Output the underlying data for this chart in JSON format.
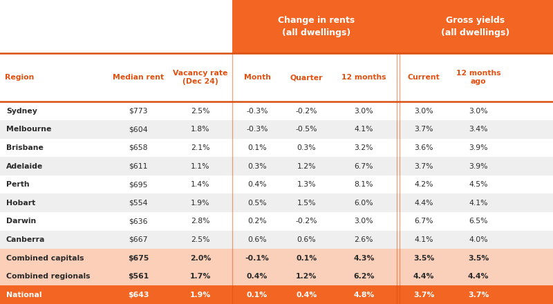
{
  "header_group1": "Change in rents\n(all dwellings)",
  "header_group2": "Gross yields\n(all dwellings)",
  "col_headers": [
    "Region",
    "Median rent",
    "Vacancy rate\n(Dec 24)",
    "Month",
    "Quarter",
    "12 months",
    "Current",
    "12 months\nago"
  ],
  "rows": [
    [
      "Sydney",
      "$773",
      "2.5%",
      "-0.3%",
      "-0.2%",
      "3.0%",
      "3.0%",
      "3.0%"
    ],
    [
      "Melbourne",
      "$604",
      "1.8%",
      "-0.3%",
      "-0.5%",
      "4.1%",
      "3.7%",
      "3.4%"
    ],
    [
      "Brisbane",
      "$658",
      "2.1%",
      "0.1%",
      "0.3%",
      "3.2%",
      "3.6%",
      "3.9%"
    ],
    [
      "Adelaide",
      "$611",
      "1.1%",
      "0.3%",
      "1.2%",
      "6.7%",
      "3.7%",
      "3.9%"
    ],
    [
      "Perth",
      "$695",
      "1.4%",
      "0.4%",
      "1.3%",
      "8.1%",
      "4.2%",
      "4.5%"
    ],
    [
      "Hobart",
      "$554",
      "1.9%",
      "0.5%",
      "1.5%",
      "6.0%",
      "4.4%",
      "4.1%"
    ],
    [
      "Darwin",
      "$636",
      "2.8%",
      "0.2%",
      "-0.2%",
      "3.0%",
      "6.7%",
      "6.5%"
    ],
    [
      "Canberra",
      "$667",
      "2.5%",
      "0.6%",
      "0.6%",
      "2.6%",
      "4.1%",
      "4.0%"
    ],
    [
      "Combined capitals",
      "$675",
      "2.0%",
      "-0.1%",
      "0.1%",
      "4.3%",
      "3.5%",
      "3.5%"
    ],
    [
      "Combined regionals",
      "$561",
      "1.7%",
      "0.4%",
      "1.2%",
      "6.2%",
      "4.4%",
      "4.4%"
    ],
    [
      "National",
      "$643",
      "1.9%",
      "0.1%",
      "0.4%",
      "4.8%",
      "3.7%",
      "3.7%"
    ]
  ],
  "orange_header": "#F26522",
  "orange_dark": "#D94F0F",
  "white": "#FFFFFF",
  "light_gray": "#EFEFEF",
  "combined_bg": "#FBCFB8",
  "national_bg": "#F26522",
  "text_orange": "#E05010",
  "text_dark": "#2A2A2A",
  "text_white": "#FFFFFF",
  "mid_panel_light": "#F5F5F5",
  "mid_panel_lighter": "#FFFFFF",
  "mid_panel_combined": "#FAD0BB",
  "right_panel_combined": "#FAD0BB"
}
